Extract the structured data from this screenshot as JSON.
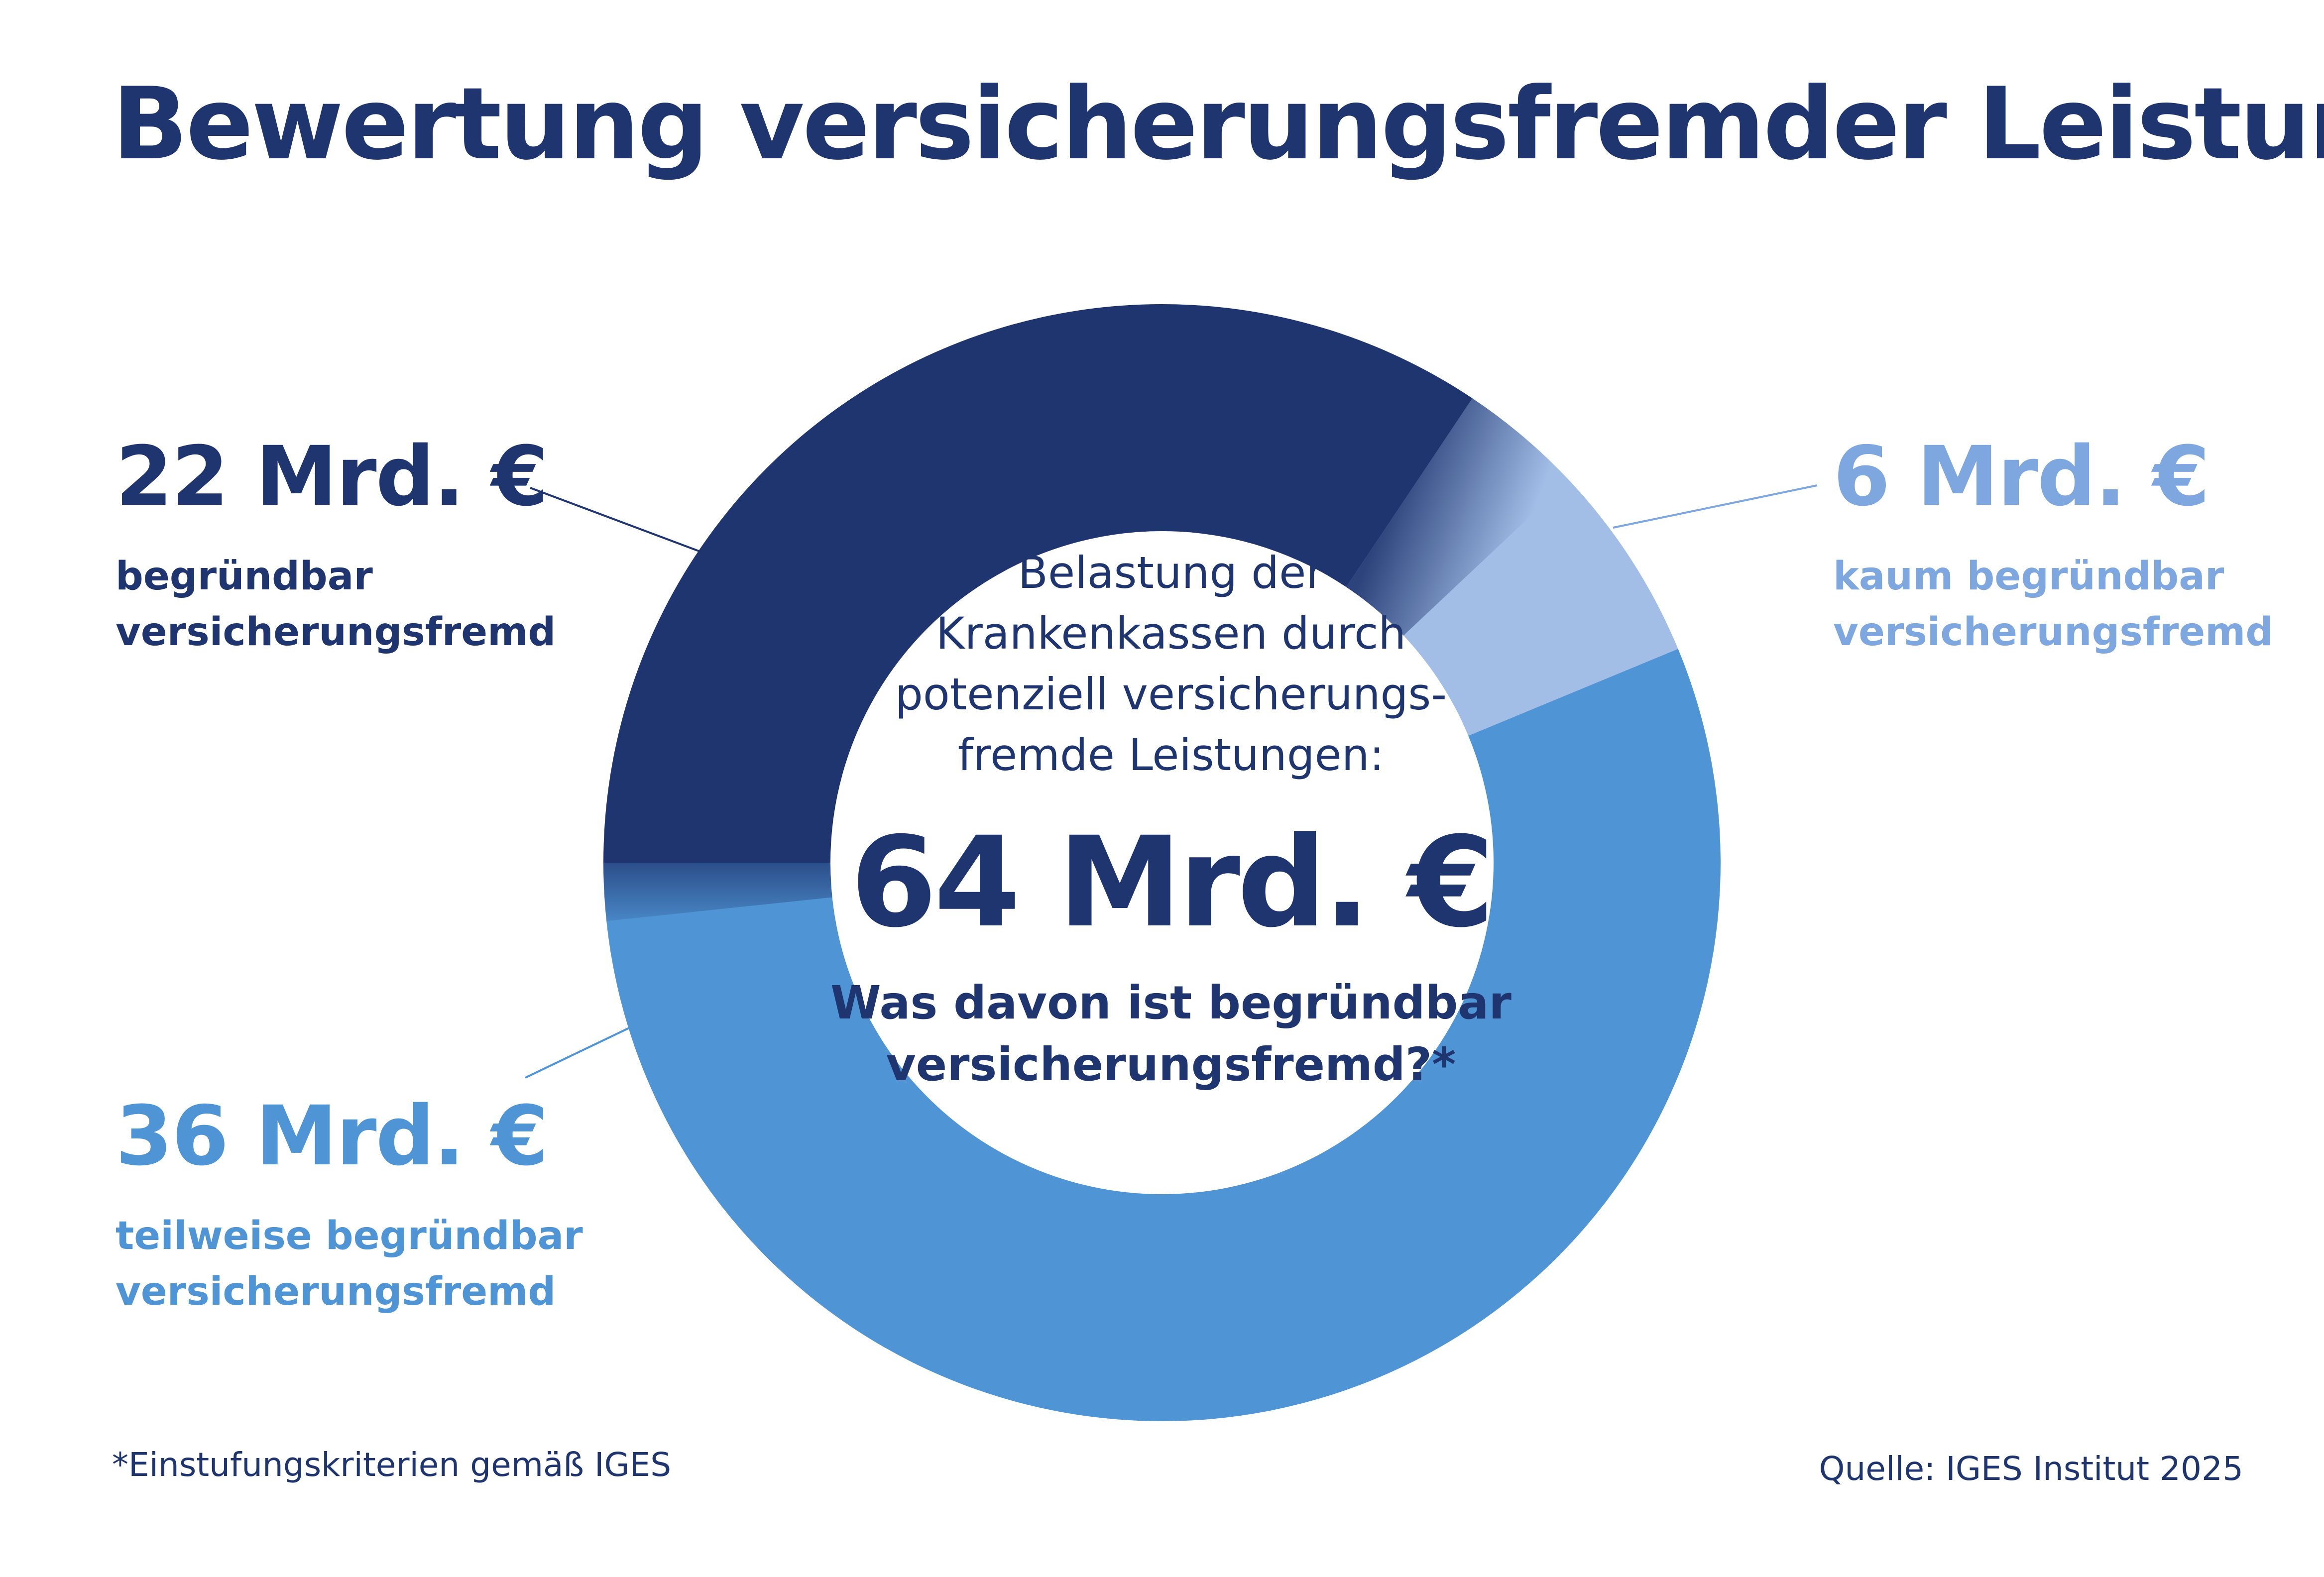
{
  "title": "Bewertung versicherungsfremder Leistungen",
  "chart_data": {
    "type": "pie",
    "variant": "donut",
    "title": "Bewertung versicherungsfremder Leistungen",
    "unit": "Mrd. €",
    "total": 64,
    "slices": [
      {
        "name": "begründbar versicherungsfremd",
        "value": 22,
        "value_label": "22 Mrd. €",
        "label_line1": "begründbar",
        "label_line2": "versicherungsfremd",
        "color": "#1f356f",
        "legend_position": "left-top"
      },
      {
        "name": "kaum begründbar versicherungsfremd",
        "value": 6,
        "value_label": "6 Mrd. €",
        "label_line1": "kaum begründbar",
        "label_line2": "versicherungsfremd",
        "color": "#a2bee7",
        "legend_position": "right-top"
      },
      {
        "name": "teilweise begründbar versicherungsfremd",
        "value": 36,
        "value_label": "36 Mrd. €",
        "label_line1": "teilweise begründbar",
        "label_line2": "versicherungsfremd",
        "color": "#4f94d4",
        "legend_position": "left-bottom"
      }
    ]
  },
  "center": {
    "description": "Belastung der Krankenkassen durch potenziell versicherungs-fremde Leistungen:",
    "total_label": "64 Mrd. €",
    "question": "Was davon ist begründbar versicherungsfremd?*"
  },
  "footnote": "*Einstufungskriterien gemäß IGES",
  "source": "Quelle: IGES Institut 2025",
  "colors": {
    "dark_navy": "#1f356f",
    "light_blue": "#a2bee7",
    "medium_blue": "#4f94d4",
    "text_dark": "#1f356f"
  }
}
